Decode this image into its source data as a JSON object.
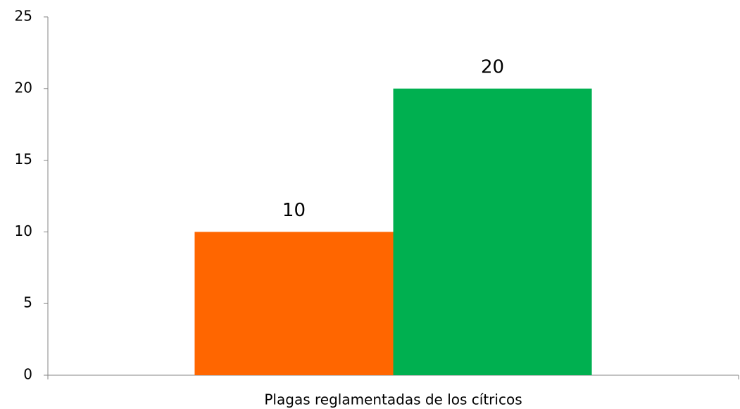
{
  "chart_data": {
    "type": "bar",
    "categories": [
      "Plagas reglamentadas de los cítricos"
    ],
    "series": [
      {
        "color": "#ff6600",
        "values": [
          10
        ]
      },
      {
        "color": "#00b050",
        "values": [
          20
        ]
      }
    ],
    "ylim": [
      0,
      25
    ],
    "yticks": [
      0,
      5,
      10,
      15,
      20,
      25
    ],
    "grid": false
  }
}
